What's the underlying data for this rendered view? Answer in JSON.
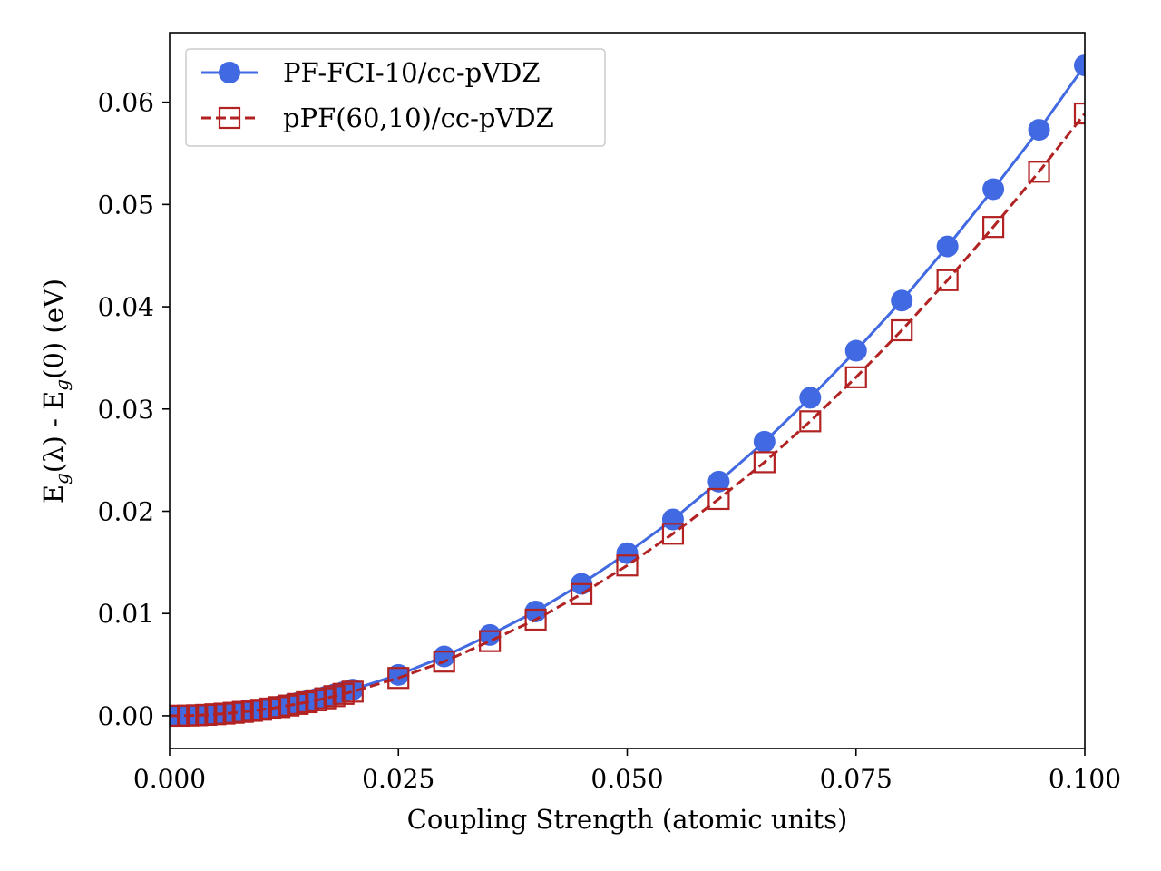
{
  "chart_data": {
    "type": "line",
    "title": "",
    "xlabel": "Coupling Strength (atomic units)",
    "ylabel_parts": [
      "E",
      "g",
      "(λ) - E",
      "g",
      "(0) (eV)"
    ],
    "xlim": [
      0.0,
      0.1
    ],
    "ylim": [
      -0.0032,
      0.0668
    ],
    "x_ticks": [
      0.0,
      0.025,
      0.05,
      0.075,
      0.1
    ],
    "x_tick_labels": [
      "0.000",
      "0.025",
      "0.050",
      "0.075",
      "0.100"
    ],
    "y_ticks": [
      0.0,
      0.01,
      0.02,
      0.03,
      0.04,
      0.05,
      0.06
    ],
    "y_tick_labels": [
      "0.00",
      "0.01",
      "0.02",
      "0.03",
      "0.04",
      "0.05",
      "0.06"
    ],
    "grid": false,
    "legend_position": "upper-left",
    "series": [
      {
        "name": "PF-FCI-10/cc-pVDZ",
        "color": "#4169e1",
        "line_style": "solid",
        "marker": "filled-circle",
        "x": [
          0.0,
          0.001,
          0.002,
          0.003,
          0.004,
          0.005,
          0.006,
          0.007,
          0.008,
          0.009,
          0.01,
          0.011,
          0.012,
          0.013,
          0.014,
          0.015,
          0.016,
          0.017,
          0.018,
          0.019,
          0.02,
          0.025,
          0.03,
          0.035,
          0.04,
          0.045,
          0.05,
          0.055,
          0.06,
          0.065,
          0.07,
          0.075,
          0.08,
          0.085,
          0.09,
          0.095,
          0.1
        ],
        "y": [
          0.0,
          0.0,
          2e-05,
          5e-05,
          0.0001,
          0.00016,
          0.00023,
          0.00031,
          0.00041,
          0.00052,
          0.00064,
          0.00078,
          0.00092,
          0.00108,
          0.00126,
          0.00144,
          0.00164,
          0.00185,
          0.00208,
          0.00231,
          0.00256,
          0.004,
          0.0058,
          0.0079,
          0.0102,
          0.0129,
          0.0159,
          0.0192,
          0.0229,
          0.0268,
          0.0311,
          0.0357,
          0.0406,
          0.0459,
          0.0515,
          0.0573,
          0.0636
        ]
      },
      {
        "name": "pPF(60,10)/cc-pVDZ",
        "color": "#b22222",
        "line_style": "dashed",
        "marker": "open-square",
        "x": [
          0.0,
          0.001,
          0.002,
          0.003,
          0.004,
          0.005,
          0.006,
          0.007,
          0.008,
          0.009,
          0.01,
          0.011,
          0.012,
          0.013,
          0.014,
          0.015,
          0.016,
          0.017,
          0.018,
          0.019,
          0.02,
          0.025,
          0.03,
          0.035,
          0.04,
          0.045,
          0.05,
          0.055,
          0.06,
          0.065,
          0.07,
          0.075,
          0.08,
          0.085,
          0.09,
          0.095,
          0.1
        ],
        "y": [
          0.0,
          0.0,
          2e-05,
          5e-05,
          9e-05,
          0.00015,
          0.00021,
          0.00029,
          0.00038,
          0.00048,
          0.00059,
          0.00071,
          0.00085,
          0.001,
          0.00116,
          0.00133,
          0.00151,
          0.00171,
          0.00192,
          0.00214,
          0.00236,
          0.0037,
          0.0053,
          0.0073,
          0.0094,
          0.0119,
          0.0147,
          0.0178,
          0.0212,
          0.0248,
          0.0288,
          0.0331,
          0.0377,
          0.0426,
          0.0478,
          0.0532,
          0.0589
        ]
      }
    ]
  }
}
